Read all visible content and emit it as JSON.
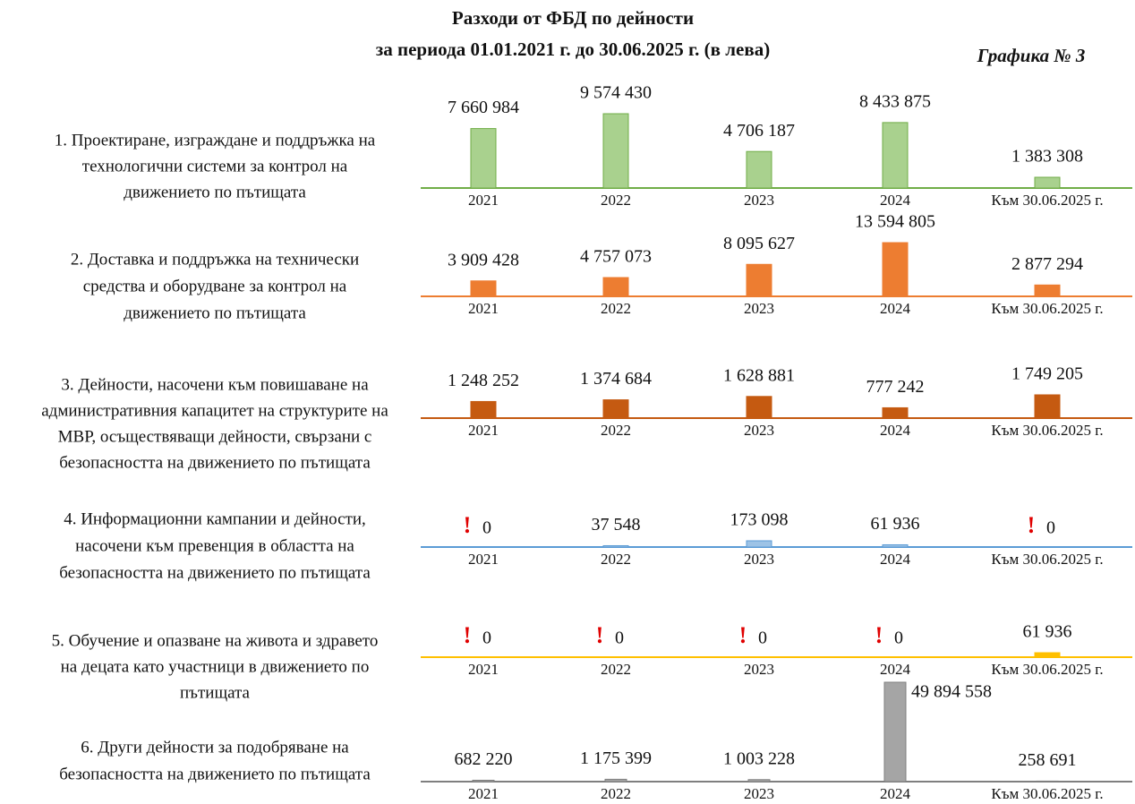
{
  "title": [
    "Разходи от ФБД по дейности",
    "за периода 01.01.2021 г. до 30.06.2025 г.  (в лева)"
  ],
  "figure_label": "Графика № 3",
  "zero_flag": "!",
  "chart_data": [
    {
      "type": "bar",
      "title": [
        "1. Проектиране, изграждане и поддръжка на",
        "технологични системи за контрол на",
        "движението по пътищата"
      ],
      "categories": [
        "2021",
        "2022",
        "2023",
        "2024",
        "Към 30.06.2025 г."
      ],
      "values": [
        7660984,
        9574430,
        4706187,
        8433875,
        1383308
      ],
      "value_labels": [
        "7 660 984",
        "9 574 430",
        "4 706 187",
        "8 433 875",
        "1 383 308"
      ],
      "color": "#a9d18e",
      "axis_color": "#70ad47"
    },
    {
      "type": "bar",
      "title": [
        "2. Доставка и поддръжка на технически",
        "средства и оборудване за контрол на",
        "движението по пътищата"
      ],
      "categories": [
        "2021",
        "2022",
        "2023",
        "2024",
        "Към 30.06.2025 г."
      ],
      "values": [
        3909428,
        4757073,
        8095627,
        13594805,
        2877294
      ],
      "value_labels": [
        "3 909 428",
        "4 757 073",
        "8 095 627",
        "13 594 805",
        "2 877 294"
      ],
      "color": "#ed7d31",
      "axis_color": "#ed7d31"
    },
    {
      "type": "bar",
      "title": [
        "3. Дейности, насочени към повишаване на",
        "административния капацитет на структурите на",
        "МВР, осъществяващи дейности, свързани с",
        "безопасността на движението по пътищата"
      ],
      "categories": [
        "2021",
        "2022",
        "2023",
        "2024",
        "Към 30.06.2025 г."
      ],
      "values": [
        1248252,
        1374684,
        1628881,
        777242,
        1749205
      ],
      "value_labels": [
        "1 248 252",
        "1 374 684",
        "1 628 881",
        "777 242",
        "1 749 205"
      ],
      "color": "#c55a11",
      "axis_color": "#c55a11"
    },
    {
      "type": "bar",
      "title": [
        "4. Информационни кампании и дейности,",
        "насочени към превенция в областта на",
        "безопасността на движението по пътищата"
      ],
      "categories": [
        "2021",
        "2022",
        "2023",
        "2024",
        "Към 30.06.2025 г."
      ],
      "values": [
        0,
        37548,
        173098,
        61936,
        0
      ],
      "value_labels": [
        "0",
        "37 548",
        "173 098",
        "61 936",
        "0"
      ],
      "color": "#9dc3e6",
      "axis_color": "#5b9bd5"
    },
    {
      "type": "bar",
      "title": [
        "5. Обучение и опазване на живота и здравето",
        "на децата като участници в движението по",
        "пътищата"
      ],
      "categories": [
        "2021",
        "2022",
        "2023",
        "2024",
        "Към 30.06.2025 г."
      ],
      "values": [
        0,
        0,
        0,
        0,
        61936
      ],
      "value_labels": [
        "0",
        "0",
        "0",
        "0",
        "61 936"
      ],
      "color": "#ffc000",
      "axis_color": "#ffc000"
    },
    {
      "type": "bar",
      "title": [
        "6. Други дейности за подобряване на",
        "безопасността на движението по пътищата"
      ],
      "categories": [
        "2021",
        "2022",
        "2023",
        "2024",
        "Към 30.06.2025 г."
      ],
      "values": [
        682220,
        1175399,
        1003228,
        49894558,
        258691
      ],
      "value_labels": [
        "682 220",
        "1 175 399",
        "1 003 228",
        "49 894 558",
        "258 691"
      ],
      "color": "#a5a5a5",
      "axis_color": "#7f7f7f"
    }
  ]
}
